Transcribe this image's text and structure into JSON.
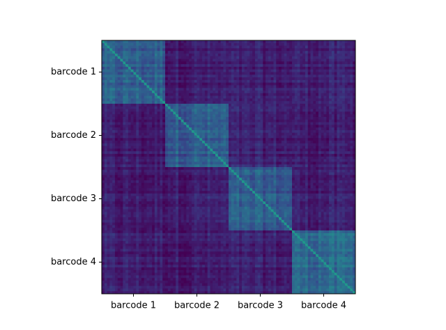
{
  "chart_data": {
    "type": "heatmap",
    "title": "",
    "xlabel": "",
    "ylabel": "",
    "x_tick_labels": [
      "barcode 1",
      "barcode 2",
      "barcode 3",
      "barcode 4"
    ],
    "y_tick_labels": [
      "barcode 1",
      "barcode 2",
      "barcode 3",
      "barcode 4"
    ],
    "groups": [
      "barcode 1",
      "barcode 2",
      "barcode 3",
      "barcode 4"
    ],
    "colormap": "viridis",
    "block_similarity_matrix": [
      [
        0.35,
        0.1,
        0.1,
        0.12
      ],
      [
        0.1,
        0.35,
        0.12,
        0.1
      ],
      [
        0.1,
        0.12,
        0.35,
        0.12
      ],
      [
        0.12,
        0.1,
        0.12,
        0.4
      ]
    ],
    "diagonal_value": 1.0,
    "grid": false,
    "legend": "none"
  },
  "colors": {
    "low": "#3b1f6e",
    "mid": "#2f5c8f",
    "high": "#21a08a",
    "axis": "#000000"
  }
}
